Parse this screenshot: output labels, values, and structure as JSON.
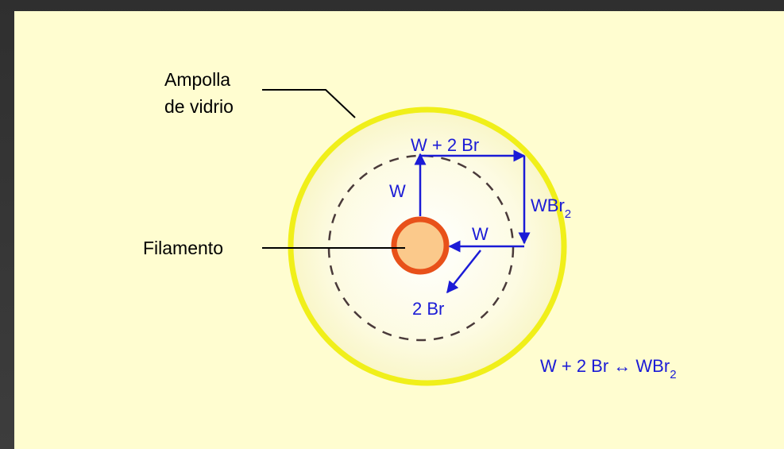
{
  "labels": {
    "bulb_line1": "Ampolla",
    "bulb_line2": "de vidrio",
    "filament": "Filamento"
  },
  "reaction": {
    "top": "W + 2 Br",
    "right_main": "WBr",
    "right_sub": "2",
    "inner_w_left": "W",
    "inner_w_right": "W",
    "bottom": "2 Br",
    "equation_main": "W + 2 Br ↔ WBr",
    "equation_sub": "2"
  },
  "colors": {
    "panel": "#fffdd0",
    "bulb_glass": "#f0ef1a",
    "filament_fill": "#fbc98b",
    "filament_ring": "#e8511a",
    "arrows": "#1b1bd6",
    "dashed_circle": "#4a3a3a"
  }
}
